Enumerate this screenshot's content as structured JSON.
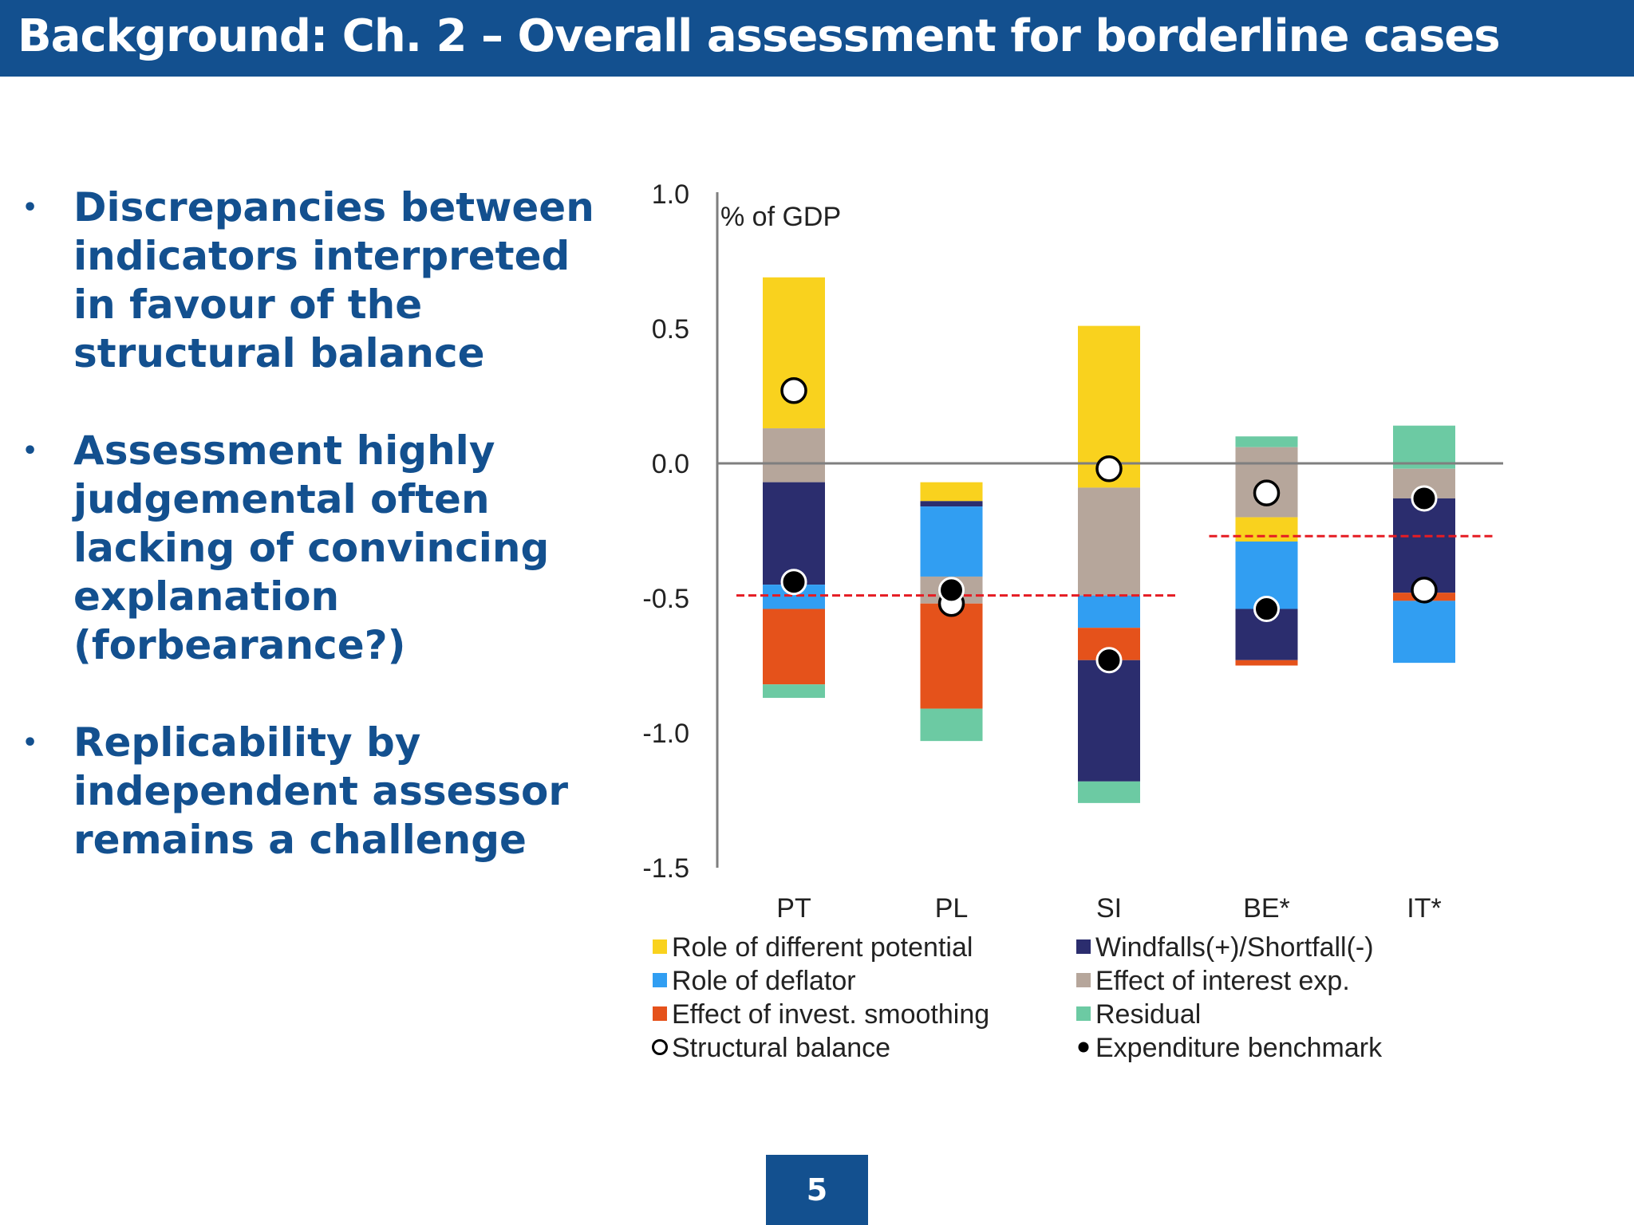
{
  "header": {
    "title": "Background: Ch. 2 – Overall assessment for borderline cases"
  },
  "bullets": [
    {
      "lines": [
        "Discrepancies between",
        "indicators interpreted",
        "in favour of the",
        "structural balance"
      ]
    },
    {
      "lines": [
        "Assessment highly",
        "judgemental often",
        "lacking of convincing",
        "explanation",
        "(forbearance?)"
      ]
    },
    {
      "lines": [
        "Replicability by",
        "independent assessor",
        "remains a challenge"
      ]
    }
  ],
  "page_number": "5",
  "chart_data": {
    "type": "bar",
    "stacked": true,
    "ylabel": "% of GDP",
    "ylim": [
      -1.5,
      1.0
    ],
    "yticks": [
      1.0,
      0.5,
      0.0,
      -0.5,
      -1.0,
      -1.5
    ],
    "ytick_labels": [
      "1.0",
      "0.5",
      "0.0",
      "-0.5",
      "-1.0",
      "-1.5"
    ],
    "categories": [
      "PT",
      "PL",
      "SI",
      "BE*",
      "IT*"
    ],
    "colors": {
      "potential": "#f9d21e",
      "windfalls": "#2b2d6e",
      "deflator": "#319ef2",
      "interest": "#b6a69b",
      "smoothing": "#e5521b",
      "residual": "#6ccaa3",
      "reference": "#e51c23",
      "axis": "#7f7f7f"
    },
    "segments": [
      [
        {
          "component": "potential",
          "from": 0.13,
          "to": 0.69
        },
        {
          "component": "interest",
          "from": -0.07,
          "to": 0.13
        },
        {
          "component": "windfalls",
          "from": -0.45,
          "to": -0.07
        },
        {
          "component": "deflator",
          "from": -0.54,
          "to": -0.45
        },
        {
          "component": "smoothing",
          "from": -0.82,
          "to": -0.54
        },
        {
          "component": "residual",
          "from": -0.87,
          "to": -0.82
        }
      ],
      [
        {
          "component": "potential",
          "from": -0.14,
          "to": -0.07
        },
        {
          "component": "windfalls",
          "from": -0.16,
          "to": -0.14
        },
        {
          "component": "deflator",
          "from": -0.42,
          "to": -0.16
        },
        {
          "component": "interest",
          "from": -0.52,
          "to": -0.42
        },
        {
          "component": "smoothing",
          "from": -0.91,
          "to": -0.52
        },
        {
          "component": "residual",
          "from": -1.03,
          "to": -0.91
        }
      ],
      [
        {
          "component": "potential",
          "from": -0.09,
          "to": 0.51
        },
        {
          "component": "interest",
          "from": -0.49,
          "to": -0.09
        },
        {
          "component": "deflator",
          "from": -0.61,
          "to": -0.49
        },
        {
          "component": "smoothing",
          "from": -0.73,
          "to": -0.61
        },
        {
          "component": "windfalls",
          "from": -1.18,
          "to": -0.73
        },
        {
          "component": "residual",
          "from": -1.26,
          "to": -1.18
        }
      ],
      [
        {
          "component": "residual",
          "from": 0.06,
          "to": 0.1
        },
        {
          "component": "interest",
          "from": -0.2,
          "to": 0.06
        },
        {
          "component": "potential",
          "from": -0.29,
          "to": -0.2
        },
        {
          "component": "deflator",
          "from": -0.54,
          "to": -0.29
        },
        {
          "component": "windfalls",
          "from": -0.73,
          "to": -0.54
        },
        {
          "component": "smoothing",
          "from": -0.75,
          "to": -0.73
        }
      ],
      [
        {
          "component": "residual",
          "from": -0.02,
          "to": 0.14
        },
        {
          "component": "interest",
          "from": -0.13,
          "to": -0.02
        },
        {
          "component": "windfalls",
          "from": -0.48,
          "to": -0.13
        },
        {
          "component": "smoothing",
          "from": -0.51,
          "to": -0.48
        },
        {
          "component": "deflator",
          "from": -0.74,
          "to": -0.51
        }
      ]
    ],
    "structural_balance": [
      0.27,
      -0.52,
      -0.02,
      -0.11,
      -0.47
    ],
    "expenditure_benchmark": [
      -0.44,
      -0.47,
      -0.73,
      -0.54,
      -0.13
    ],
    "reference_lines": [
      {
        "value": -0.49,
        "from_category": "PT",
        "to_category": "SI"
      },
      {
        "value": -0.27,
        "from_category": "BE*",
        "to_category": "IT*"
      }
    ],
    "legend": [
      {
        "key": "potential",
        "label": "Role of different potential",
        "marker": "square"
      },
      {
        "key": "windfalls",
        "label": "Windfalls(+)/Shortfall(-)",
        "marker": "square"
      },
      {
        "key": "deflator",
        "label": "Role of deflator",
        "marker": "square"
      },
      {
        "key": "interest",
        "label": "Effect of interest exp.",
        "marker": "square"
      },
      {
        "key": "smoothing",
        "label": "Effect of invest. smoothing",
        "marker": "square"
      },
      {
        "key": "residual",
        "label": "Residual",
        "marker": "square"
      },
      {
        "key": "structural_balance",
        "label": "Structural balance",
        "marker": "open-circle"
      },
      {
        "key": "expenditure_benchmark",
        "label": "Expenditure benchmark",
        "marker": "filled-circle"
      }
    ],
    "legend_position": "bottom",
    "grid": false
  }
}
